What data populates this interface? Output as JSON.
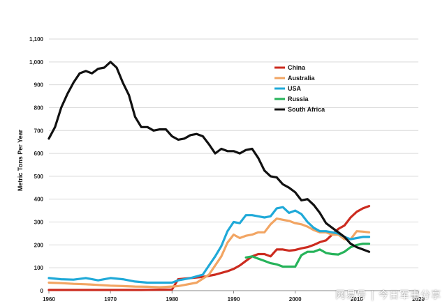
{
  "chart_data": {
    "type": "line",
    "title": "",
    "xlabel": "",
    "ylabel": "Metric Tons Per Year",
    "xlim": [
      1960,
      2020
    ],
    "ylim": [
      0,
      1100
    ],
    "x_ticks": [
      "1960",
      "1970",
      "1980",
      "1990",
      "2000",
      "2010",
      "2020"
    ],
    "y_ticks": [
      "0",
      "100",
      "200",
      "300",
      "400",
      "500",
      "600",
      "700",
      "800",
      "900",
      "1,000",
      "1,100"
    ],
    "grid": "horizontal",
    "legend_position": "top-right",
    "series": [
      {
        "name": "China",
        "color": "#cc2b1f",
        "points": [
          [
            1960,
            3
          ],
          [
            1965,
            3
          ],
          [
            1970,
            3
          ],
          [
            1975,
            3
          ],
          [
            1980,
            5
          ],
          [
            1981,
            50
          ],
          [
            1983,
            55
          ],
          [
            1985,
            60
          ],
          [
            1987,
            70
          ],
          [
            1989,
            85
          ],
          [
            1990,
            95
          ],
          [
            1991,
            110
          ],
          [
            1992,
            130
          ],
          [
            1993,
            150
          ],
          [
            1994,
            160
          ],
          [
            1995,
            160
          ],
          [
            1996,
            150
          ],
          [
            1997,
            180
          ],
          [
            1998,
            180
          ],
          [
            1999,
            175
          ],
          [
            2000,
            178
          ],
          [
            2001,
            185
          ],
          [
            2002,
            190
          ],
          [
            2003,
            200
          ],
          [
            2004,
            212
          ],
          [
            2005,
            220
          ],
          [
            2006,
            245
          ],
          [
            2007,
            270
          ],
          [
            2008,
            285
          ],
          [
            2009,
            320
          ],
          [
            2010,
            345
          ],
          [
            2011,
            360
          ],
          [
            2012,
            370
          ]
        ]
      },
      {
        "name": "Australia",
        "color": "#f2a563",
        "points": [
          [
            1960,
            35
          ],
          [
            1962,
            33
          ],
          [
            1964,
            30
          ],
          [
            1966,
            28
          ],
          [
            1968,
            25
          ],
          [
            1970,
            22
          ],
          [
            1972,
            20
          ],
          [
            1974,
            18
          ],
          [
            1976,
            17
          ],
          [
            1978,
            15
          ],
          [
            1980,
            18
          ],
          [
            1981,
            20
          ],
          [
            1982,
            25
          ],
          [
            1984,
            35
          ],
          [
            1986,
            70
          ],
          [
            1988,
            150
          ],
          [
            1989,
            210
          ],
          [
            1990,
            245
          ],
          [
            1991,
            230
          ],
          [
            1992,
            240
          ],
          [
            1993,
            245
          ],
          [
            1994,
            255
          ],
          [
            1995,
            255
          ],
          [
            1996,
            290
          ],
          [
            1997,
            315
          ],
          [
            1998,
            310
          ],
          [
            1999,
            305
          ],
          [
            2000,
            295
          ],
          [
            2001,
            290
          ],
          [
            2002,
            280
          ],
          [
            2003,
            265
          ],
          [
            2004,
            255
          ],
          [
            2005,
            255
          ],
          [
            2006,
            245
          ],
          [
            2007,
            245
          ],
          [
            2008,
            225
          ],
          [
            2009,
            225
          ],
          [
            2010,
            260
          ],
          [
            2011,
            258
          ],
          [
            2012,
            255
          ]
        ]
      },
      {
        "name": "USA",
        "color": "#1fa9d8",
        "points": [
          [
            1960,
            55
          ],
          [
            1962,
            50
          ],
          [
            1964,
            48
          ],
          [
            1966,
            55
          ],
          [
            1968,
            45
          ],
          [
            1970,
            55
          ],
          [
            1972,
            50
          ],
          [
            1974,
            40
          ],
          [
            1976,
            35
          ],
          [
            1978,
            35
          ],
          [
            1980,
            35
          ],
          [
            1981,
            45
          ],
          [
            1983,
            55
          ],
          [
            1985,
            70
          ],
          [
            1986,
            110
          ],
          [
            1987,
            150
          ],
          [
            1988,
            195
          ],
          [
            1989,
            260
          ],
          [
            1990,
            300
          ],
          [
            1991,
            295
          ],
          [
            1992,
            330
          ],
          [
            1993,
            330
          ],
          [
            1994,
            325
          ],
          [
            1995,
            320
          ],
          [
            1996,
            325
          ],
          [
            1997,
            360
          ],
          [
            1998,
            365
          ],
          [
            1999,
            340
          ],
          [
            2000,
            350
          ],
          [
            2001,
            335
          ],
          [
            2002,
            300
          ],
          [
            2003,
            275
          ],
          [
            2004,
            260
          ],
          [
            2005,
            260
          ],
          [
            2006,
            255
          ],
          [
            2007,
            250
          ],
          [
            2008,
            235
          ],
          [
            2009,
            225
          ],
          [
            2010,
            230
          ],
          [
            2011,
            235
          ],
          [
            2012,
            235
          ]
        ]
      },
      {
        "name": "Russia",
        "color": "#26b35a",
        "points": [
          [
            1992,
            145
          ],
          [
            1993,
            150
          ],
          [
            1994,
            140
          ],
          [
            1995,
            130
          ],
          [
            1996,
            120
          ],
          [
            1997,
            115
          ],
          [
            1998,
            105
          ],
          [
            1999,
            105
          ],
          [
            2000,
            105
          ],
          [
            2001,
            155
          ],
          [
            2002,
            170
          ],
          [
            2003,
            170
          ],
          [
            2004,
            180
          ],
          [
            2005,
            165
          ],
          [
            2006,
            160
          ],
          [
            2007,
            158
          ],
          [
            2008,
            170
          ],
          [
            2009,
            190
          ],
          [
            2010,
            200
          ],
          [
            2011,
            205
          ],
          [
            2012,
            205
          ]
        ]
      },
      {
        "name": "South Africa",
        "color": "#111111",
        "points": [
          [
            1960,
            665
          ],
          [
            1961,
            715
          ],
          [
            1962,
            800
          ],
          [
            1963,
            860
          ],
          [
            1964,
            910
          ],
          [
            1965,
            950
          ],
          [
            1966,
            960
          ],
          [
            1967,
            950
          ],
          [
            1968,
            970
          ],
          [
            1969,
            975
          ],
          [
            1970,
            1000
          ],
          [
            1971,
            975
          ],
          [
            1972,
            910
          ],
          [
            1973,
            855
          ],
          [
            1974,
            760
          ],
          [
            1975,
            715
          ],
          [
            1976,
            715
          ],
          [
            1977,
            700
          ],
          [
            1978,
            705
          ],
          [
            1979,
            705
          ],
          [
            1980,
            675
          ],
          [
            1981,
            660
          ],
          [
            1982,
            665
          ],
          [
            1983,
            680
          ],
          [
            1984,
            685
          ],
          [
            1985,
            675
          ],
          [
            1986,
            640
          ],
          [
            1987,
            600
          ],
          [
            1988,
            620
          ],
          [
            1989,
            610
          ],
          [
            1990,
            610
          ],
          [
            1991,
            600
          ],
          [
            1992,
            615
          ],
          [
            1993,
            620
          ],
          [
            1994,
            580
          ],
          [
            1995,
            525
          ],
          [
            1996,
            500
          ],
          [
            1997,
            495
          ],
          [
            1998,
            465
          ],
          [
            1999,
            450
          ],
          [
            2000,
            430
          ],
          [
            2001,
            395
          ],
          [
            2002,
            400
          ],
          [
            2003,
            375
          ],
          [
            2004,
            340
          ],
          [
            2005,
            295
          ],
          [
            2006,
            275
          ],
          [
            2007,
            255
          ],
          [
            2008,
            235
          ],
          [
            2009,
            205
          ],
          [
            2010,
            190
          ],
          [
            2011,
            180
          ],
          [
            2012,
            170
          ]
        ]
      }
    ]
  },
  "watermark": "网易号 | 今日军事分享"
}
